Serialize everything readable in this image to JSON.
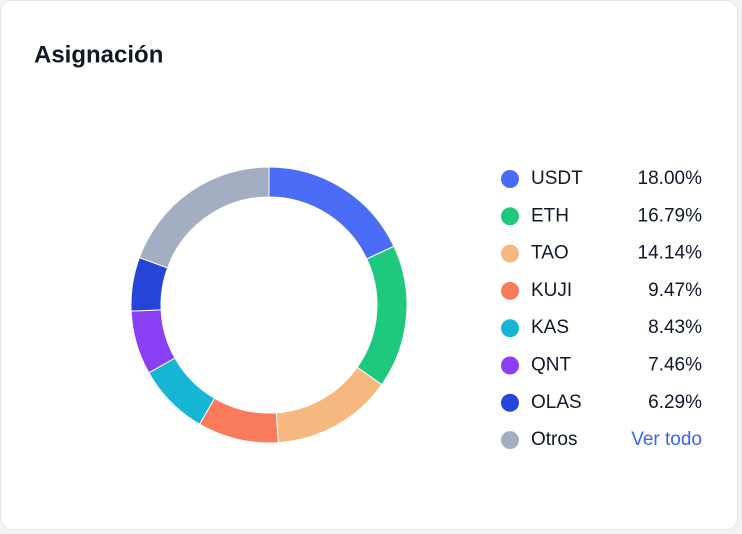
{
  "chart_data": {
    "type": "pie",
    "title": "Asignación",
    "categories": [
      "USDT",
      "ETH",
      "TAO",
      "KUJI",
      "KAS",
      "QNT",
      "OLAS",
      "Otros"
    ],
    "values": [
      18.0,
      16.79,
      14.14,
      9.47,
      8.43,
      7.46,
      6.29,
      19.42
    ],
    "value_labels": [
      "18.00%",
      "16.79%",
      "14.14%",
      "9.47%",
      "8.43%",
      "7.46%",
      "6.29%",
      null
    ],
    "colors": [
      "#4a6cf7",
      "#1ec97e",
      "#f5b97f",
      "#f97b5c",
      "#16b5d4",
      "#8b3ff5",
      "#2445d6",
      "#a3aec2"
    ],
    "link_text": "Ver todo"
  }
}
